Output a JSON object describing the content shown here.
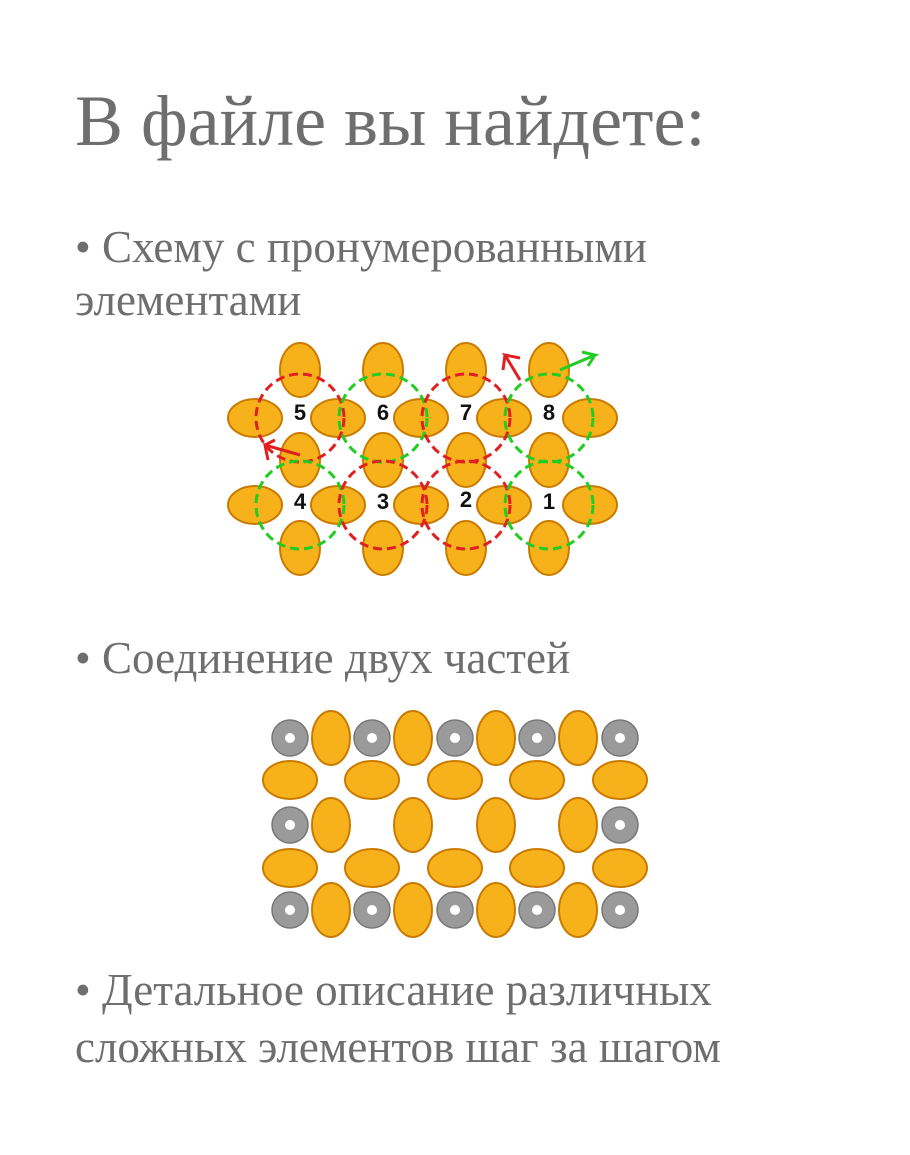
{
  "header": {
    "title": "В файле вы найдете:"
  },
  "items": [
    {
      "lines": [
        "• Схему с пронумерованными",
        "элементами"
      ]
    },
    {
      "lines": [
        "• Соединение двух частей"
      ]
    },
    {
      "lines": [
        "• Детальное описание различных",
        "сложных элементов шаг за шагом"
      ]
    }
  ],
  "diagram": {
    "labels": [
      "5",
      "6",
      "7",
      "8",
      "4",
      "3",
      "2",
      "1"
    ]
  }
}
